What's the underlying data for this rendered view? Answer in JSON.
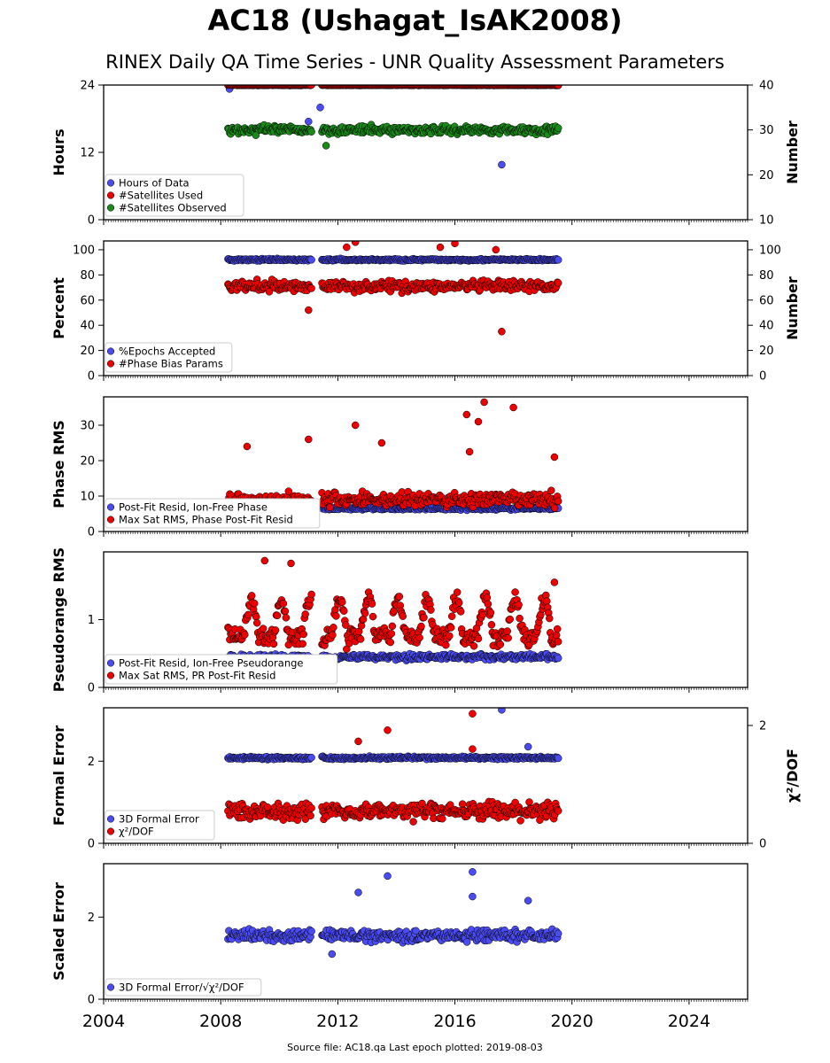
{
  "title": "AC18 (Ushagat_IsAK2008)",
  "subtitle": "RINEX Daily QA Time Series - UNR Quality Assessment Parameters",
  "footer": "Source file: AC18.qa Last epoch plotted: 2019-08-03",
  "colors": {
    "blue": "#4b4bf2",
    "red": "#ee0000",
    "green": "#1a8a1a",
    "edge": "#000000"
  },
  "chart_data": [
    {
      "type": "scatter",
      "xlim": [
        2004,
        2026
      ],
      "xticks": [
        2004,
        2008,
        2012,
        2016,
        2020,
        2024
      ],
      "ylabel": "Hours",
      "ylim": [
        0,
        24
      ],
      "yticks": [
        "0",
        "12",
        "24"
      ],
      "ylabel_right": "Number",
      "ylim_right": [
        10,
        40
      ],
      "yticks_right": [
        "10",
        "20",
        "30",
        "40"
      ],
      "legend": {
        "placement": "lower-left",
        "entries": [
          "Hours of Data",
          "#Satellites Used",
          "#Satellites Observed"
        ]
      },
      "series": [
        {
          "name": "Hours of Data",
          "color": "blue",
          "axis": "left",
          "base": 24.0,
          "spread": 0.1,
          "outliers": [
            [
              2008.3,
              23.3
            ],
            [
              2011.0,
              17.5
            ],
            [
              2011.4,
              20.0
            ],
            [
              2017.6,
              9.8
            ]
          ]
        },
        {
          "name": "#Satellites Used",
          "color": "red",
          "axis": "right",
          "base": 40,
          "spread": 0.1,
          "outliers": []
        },
        {
          "name": "#Satellites Observed",
          "color": "green",
          "axis": "right",
          "base": 30,
          "spread": 1.3,
          "outliers": [
            [
              2011.6,
              26.5
            ],
            [
              2009.2,
              28.8
            ]
          ]
        }
      ]
    },
    {
      "type": "scatter",
      "xlim": [
        2004,
        2026
      ],
      "ylabel": "Percent",
      "ylim": [
        0,
        107
      ],
      "yticks": [
        "0",
        "20",
        "40",
        "60",
        "80",
        "100"
      ],
      "ylabel_right": "Number",
      "ylim_right": [
        0,
        107
      ],
      "yticks_right": [
        "0",
        "20",
        "40",
        "60",
        "80",
        "100"
      ],
      "legend": {
        "placement": "lower-left",
        "entries": [
          "%Epochs Accepted",
          "#Phase Bias Params"
        ]
      },
      "series": [
        {
          "name": "%Epochs Accepted",
          "color": "blue",
          "axis": "left",
          "base": 92,
          "spread": 1.2,
          "outliers": []
        },
        {
          "name": "#Phase Bias Params",
          "color": "red",
          "axis": "right",
          "base": 71,
          "spread": 6,
          "outliers": [
            [
              2011.0,
              52
            ],
            [
              2017.6,
              35
            ],
            [
              2012.3,
              102
            ],
            [
              2012.6,
              106
            ],
            [
              2015.5,
              102
            ],
            [
              2016.0,
              105
            ],
            [
              2017.4,
              100
            ]
          ]
        }
      ]
    },
    {
      "type": "scatter",
      "xlim": [
        2004,
        2026
      ],
      "ylabel": "Phase RMS",
      "ylim": [
        0,
        38
      ],
      "yticks": [
        "0",
        "10",
        "20",
        "30"
      ],
      "legend": {
        "placement": "lower-left",
        "entries": [
          "Post-Fit Resid, Ion-Free Phase",
          "Max Sat RMS, Phase Post-Fit Resid"
        ]
      },
      "series": [
        {
          "name": "Post-Fit Resid, Ion-Free Phase",
          "color": "blue",
          "axis": "left",
          "base": 6.5,
          "spread": 0.6,
          "outliers": []
        },
        {
          "name": "Max Sat RMS, Phase Post-Fit Resid",
          "color": "red",
          "axis": "left",
          "base": 9,
          "spread": 3,
          "outliers": [
            [
              2008.9,
              24
            ],
            [
              2011.0,
              26
            ],
            [
              2012.6,
              30
            ],
            [
              2013.5,
              25
            ],
            [
              2016.4,
              33
            ],
            [
              2016.8,
              31
            ],
            [
              2017.0,
              36.5
            ],
            [
              2018.0,
              35
            ],
            [
              2016.5,
              22.5
            ],
            [
              2019.4,
              21
            ]
          ]
        }
      ]
    },
    {
      "type": "scatter",
      "xlim": [
        2004,
        2026
      ],
      "ylabel": "Pseudorange RMS",
      "ylim": [
        0,
        2.0
      ],
      "yticks": [
        "0",
        "1"
      ],
      "legend": {
        "placement": "lower-left",
        "entries": [
          "Post-Fit Resid, Ion-Free Pseudorange",
          "Max Sat RMS, PR Post-Fit Resid"
        ]
      },
      "series": [
        {
          "name": "Post-Fit Resid, Ion-Free Pseudorange",
          "color": "blue",
          "axis": "left",
          "base": 0.45,
          "spread": 0.06,
          "outliers": []
        },
        {
          "name": "Max Sat RMS, PR Post-Fit Resid",
          "color": "red",
          "axis": "left",
          "base": 0.75,
          "spread": 0.5,
          "outliers": [
            [
              2009.5,
              1.87
            ],
            [
              2010.4,
              1.83
            ],
            [
              2019.4,
              1.55
            ]
          ]
        }
      ]
    },
    {
      "type": "scatter",
      "xlim": [
        2004,
        2026
      ],
      "ylabel": "Formal Error",
      "ylim": [
        0,
        3.3
      ],
      "yticks": [
        "0",
        "2"
      ],
      "ylabel_right": "χ²/DOF",
      "ylim_right": [
        0,
        2.3
      ],
      "yticks_right": [
        "0",
        "2"
      ],
      "legend": {
        "placement": "lower-left",
        "entries": [
          "3D Formal Error",
          "χ²/DOF"
        ]
      },
      "series": [
        {
          "name": "3D Formal Error",
          "color": "blue",
          "axis": "left",
          "base": 2.08,
          "spread": 0.05,
          "outliers": [
            [
              2017.6,
              3.25
            ],
            [
              2018.5,
              2.35
            ]
          ]
        },
        {
          "name": "χ²/DOF",
          "color": "red",
          "axis": "right",
          "base": 0.55,
          "spread": 0.2,
          "outliers": [
            [
              2012.7,
              1.73
            ],
            [
              2013.7,
              1.92
            ],
            [
              2016.6,
              2.2
            ],
            [
              2016.6,
              1.6
            ]
          ]
        }
      ]
    },
    {
      "type": "scatter",
      "xlim": [
        2004,
        2026
      ],
      "ylabel": "Scaled Error",
      "ylim": [
        0,
        3.3
      ],
      "yticks": [
        "0",
        "2"
      ],
      "legend": {
        "placement": "lower-left",
        "entries": [
          "3D Formal Error/√χ²/DOF"
        ]
      },
      "series": [
        {
          "name": "3D Formal Error/√χ²/DOF",
          "color": "blue",
          "axis": "left",
          "base": 1.55,
          "spread": 0.2,
          "outliers": [
            [
              2013.7,
              3.0
            ],
            [
              2016.6,
              3.1
            ],
            [
              2012.7,
              2.6
            ],
            [
              2016.6,
              2.5
            ],
            [
              2018.5,
              2.4
            ],
            [
              2011.8,
              1.1
            ]
          ]
        }
      ]
    }
  ]
}
